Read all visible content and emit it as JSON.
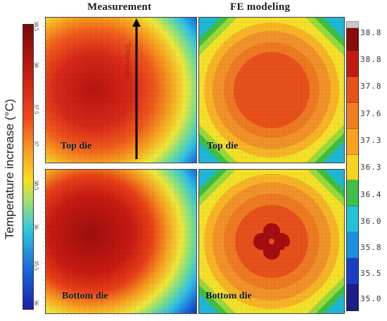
{
  "headers": {
    "measurement": "Measurement",
    "fe_modeling": "FE modeling"
  },
  "y_axis_label": "Temperature increase (°C)",
  "arrow_label": "Temperature",
  "panels": {
    "meas_top": "Top die",
    "meas_bottom": "Bottom die",
    "fe_top": "Top die",
    "fe_bottom": "Bottom die"
  },
  "left_ticks": {
    "top": [
      "38.5",
      "38",
      "37.5",
      "37"
    ],
    "bottom": [
      "38.5",
      "36",
      "35.5",
      "36"
    ]
  },
  "right_colorbar": {
    "labels": [
      "38.8",
      "38.8",
      "37.8",
      "37.6",
      "37.3",
      "36.3",
      "36.4",
      "36.0",
      "35.8",
      "35.5",
      "35.0"
    ],
    "colors": [
      "#8b0a0a",
      "#c21a10",
      "#e8501c",
      "#f07d1e",
      "#f7a21f",
      "#f7d51f",
      "#3fbf45",
      "#24c2d9",
      "#1b8fe0",
      "#1a3fc4",
      "#1a1f8a"
    ]
  },
  "left_colorbar": {
    "colors": [
      "#7a0a0a",
      "#c81e12",
      "#f04a1a",
      "#f8a020",
      "#f8e020",
      "#30c8e0",
      "#1a70d8",
      "#1a20a8"
    ]
  }
}
